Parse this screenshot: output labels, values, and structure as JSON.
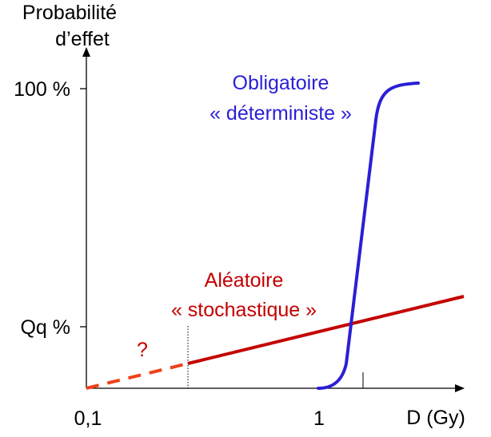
{
  "chart_data": {
    "type": "line",
    "y_axis_label_line1": "Probabilité",
    "y_axis_label_line2": "d’effet",
    "x_axis_label": "D (Gy)",
    "x_ticks": [
      "0,1",
      "1"
    ],
    "y_ticks": [
      "100 %",
      "Qq %"
    ],
    "series": [
      {
        "key": "deterministic",
        "label_line1": "Obligatoire",
        "label_line2": "« déterministe »",
        "color": "#2a1fd6"
      },
      {
        "key": "stochastic",
        "label_line1": "Aléatoire",
        "label_line2": "« stochastique »",
        "color": "#c40000",
        "extrapolated_color": "#f0401a"
      }
    ],
    "annotation": "?",
    "grid": false,
    "axis_color": "#000000"
  }
}
